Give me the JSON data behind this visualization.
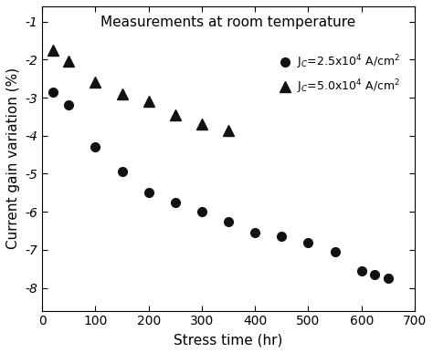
{
  "title": "Measurements at room temperature",
  "xlabel": "Stress time (hr)",
  "ylabel": "Current gain variation (%)",
  "xlim": [
    0,
    700
  ],
  "ylim": [
    -8.6,
    -0.6
  ],
  "yticks": [
    -8,
    -7,
    -6,
    -5,
    -4,
    -3,
    -2,
    -1
  ],
  "xticks": [
    0,
    100,
    200,
    300,
    400,
    500,
    600,
    700
  ],
  "series1": {
    "label": "J$_C$=2.5x10$^4$ A/cm$^2$",
    "x": [
      20,
      50,
      100,
      150,
      200,
      250,
      300,
      350,
      400,
      450,
      500,
      550,
      600,
      625,
      650
    ],
    "y": [
      -2.85,
      -3.2,
      -4.3,
      -4.95,
      -5.5,
      -5.75,
      -6.0,
      -6.25,
      -6.55,
      -6.65,
      -6.8,
      -7.05,
      -7.55,
      -7.65,
      -7.75
    ],
    "marker": "o",
    "color": "#111111",
    "markersize": 7
  },
  "series2": {
    "label": "J$_C$=5.0x10$^4$ A/cm$^2$",
    "x": [
      20,
      50,
      100,
      150,
      200,
      250,
      300,
      350
    ],
    "y": [
      -1.75,
      -2.05,
      -2.6,
      -2.9,
      -3.1,
      -3.45,
      -3.7,
      -3.85
    ],
    "marker": "^",
    "color": "#111111",
    "markersize": 8
  },
  "background_color": "#ffffff",
  "title_fontsize": 11,
  "legend_fontsize": 9,
  "tick_fontsize": 10,
  "axis_label_fontsize": 11
}
